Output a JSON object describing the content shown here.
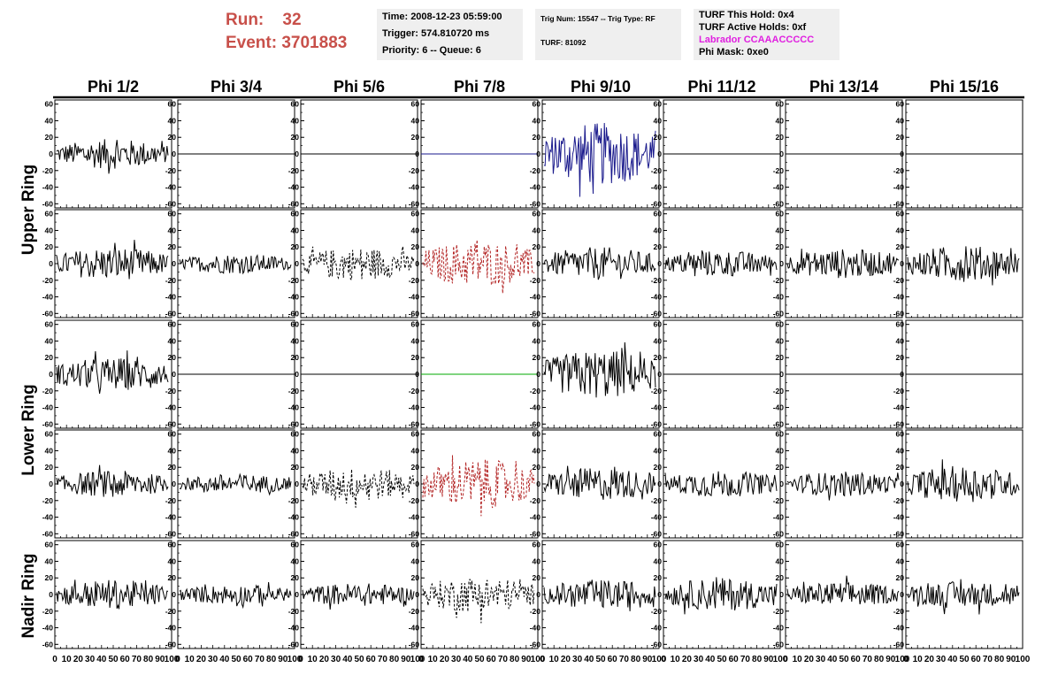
{
  "header": {
    "run_label": "Run:",
    "run_value": "32",
    "event_label": "Event:",
    "event_value": "3701883",
    "time": "Time: 2008-12-23 05:59:00",
    "trigger": "Trigger: 574.810720 ms",
    "priority": "Priority: 6 -- Queue: 6",
    "trig_num": "Trig Num: 15547 -- Trig Type: RF",
    "turf": "TURF: 81092",
    "turf_hold": "TURF This Hold: 0x4",
    "turf_active": "TURF Active Holds: 0xf",
    "labrador": "Labrador CCAAACCCCC",
    "phi_mask": "Phi Mask: 0xe0"
  },
  "colors": {
    "run_text": "#c8504a",
    "labrador_text": "#e020e0",
    "trace_black": "#000000",
    "trace_blue": "#1a1a8c",
    "trace_red": "#b22222",
    "trace_green": "#00aa00"
  },
  "chart_data": {
    "type": "line",
    "columns": [
      "Phi 1/2",
      "Phi 3/4",
      "Phi 5/6",
      "Phi 7/8",
      "Phi 9/10",
      "Phi 11/12",
      "Phi 13/14",
      "Phi 15/16"
    ],
    "row_groups": [
      "Upper Ring",
      "Lower Ring",
      "Nadir Ring"
    ],
    "ylim": [
      -65,
      65
    ],
    "yticks": [
      -60,
      -40,
      -20,
      0,
      20,
      40,
      60
    ],
    "xlim": [
      0,
      100
    ],
    "xtick_labels": [
      "0",
      "10",
      "20",
      "30",
      "40",
      "50",
      "60",
      "70",
      "80",
      "90",
      "100"
    ],
    "rows": [
      [
        {
          "style": "solid",
          "color": "#000000",
          "amp": 18
        },
        {
          "style": "flat",
          "color": "#000000",
          "amp": 0
        },
        {
          "style": "flat",
          "color": "#000000",
          "amp": 0
        },
        {
          "style": "flat",
          "color": "#1a1a8c",
          "amp": 0
        },
        {
          "style": "solid",
          "color": "#1a1a8c",
          "amp": 38
        },
        {
          "style": "flat",
          "color": "#000000",
          "amp": 0
        },
        {
          "style": "flat",
          "color": "#000000",
          "amp": 0
        },
        {
          "style": "flat",
          "color": "#000000",
          "amp": 0
        }
      ],
      [
        {
          "style": "solid",
          "color": "#000000",
          "amp": 20
        },
        {
          "style": "solid",
          "color": "#000000",
          "amp": 12
        },
        {
          "style": "dashed",
          "color": "#000000",
          "amp": 20
        },
        {
          "style": "dashed",
          "color": "#b22222",
          "amp": 28
        },
        {
          "style": "solid",
          "color": "#000000",
          "amp": 20
        },
        {
          "style": "solid",
          "color": "#000000",
          "amp": 16
        },
        {
          "style": "solid",
          "color": "#000000",
          "amp": 18
        },
        {
          "style": "solid",
          "color": "#000000",
          "amp": 22
        }
      ],
      [
        {
          "style": "solid",
          "color": "#000000",
          "amp": 20
        },
        {
          "style": "flat",
          "color": "#000000",
          "amp": 0
        },
        {
          "style": "flat",
          "color": "#000000",
          "amp": 0
        },
        {
          "style": "flat",
          "color": "#00aa00",
          "amp": 0
        },
        {
          "style": "solid",
          "color": "#000000",
          "amp": 30
        },
        {
          "style": "flat",
          "color": "#000000",
          "amp": 0
        },
        {
          "style": "flat",
          "color": "#000000",
          "amp": 0
        },
        {
          "style": "flat",
          "color": "#000000",
          "amp": 0
        }
      ],
      [
        {
          "style": "solid",
          "color": "#000000",
          "amp": 16
        },
        {
          "style": "solid",
          "color": "#000000",
          "amp": 12
        },
        {
          "style": "dashed",
          "color": "#000000",
          "amp": 20
        },
        {
          "style": "dashed",
          "color": "#b22222",
          "amp": 30
        },
        {
          "style": "solid",
          "color": "#000000",
          "amp": 20
        },
        {
          "style": "solid",
          "color": "#000000",
          "amp": 16
        },
        {
          "style": "solid",
          "color": "#000000",
          "amp": 15
        },
        {
          "style": "solid",
          "color": "#000000",
          "amp": 22
        }
      ],
      [
        {
          "style": "solid",
          "color": "#000000",
          "amp": 18
        },
        {
          "style": "solid",
          "color": "#000000",
          "amp": 12
        },
        {
          "style": "solid",
          "color": "#000000",
          "amp": 14
        },
        {
          "style": "dashed",
          "color": "#000000",
          "amp": 22
        },
        {
          "style": "solid",
          "color": "#000000",
          "amp": 18
        },
        {
          "style": "solid",
          "color": "#000000",
          "amp": 20
        },
        {
          "style": "solid",
          "color": "#000000",
          "amp": 15
        },
        {
          "style": "solid",
          "color": "#000000",
          "amp": 16
        }
      ]
    ]
  }
}
